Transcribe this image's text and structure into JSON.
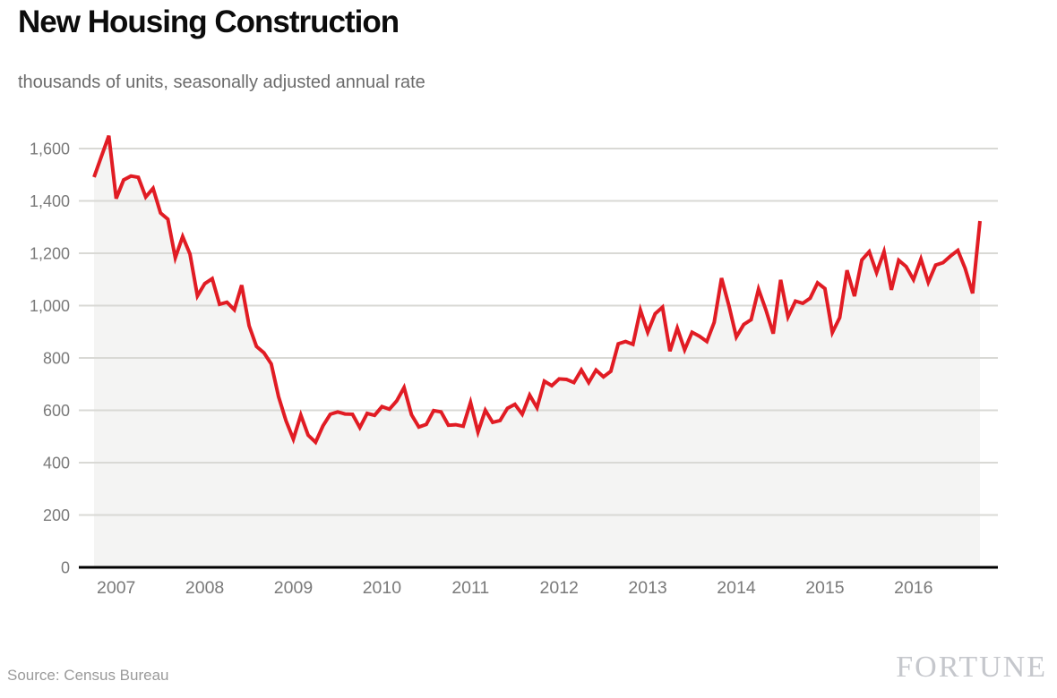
{
  "header": {
    "title": "New Housing Construction",
    "subtitle": "thousands of units, seasonally adjusted annual rate"
  },
  "footer": {
    "source": "Source: Census Bureau",
    "brand": "FORTUNE"
  },
  "chart_data": {
    "type": "line",
    "title": "New Housing Construction",
    "subtitle": "thousands of units, seasonally adjusted annual rate",
    "ylabel": "thousands of units, seasonally adjusted annual rate",
    "xlabel": "",
    "ylim": [
      0,
      1600
    ],
    "grid": "horizontal",
    "legend": "none",
    "line_color": "#e11c24",
    "area_fill_color": "#f4f4f3",
    "grid_color": "#d9d9d5",
    "axis_color": "#000000",
    "y_ticks": [
      0,
      200,
      400,
      600,
      800,
      1000,
      1200,
      1400,
      1600
    ],
    "y_tick_labels": [
      "0",
      "200",
      "400",
      "600",
      "800",
      "1,000",
      "1,200",
      "1,400",
      "1,600"
    ],
    "x_tick_labels": [
      "2007",
      "2008",
      "2009",
      "2010",
      "2011",
      "2012",
      "2013",
      "2014",
      "2015",
      "2016"
    ],
    "x_ticks_first_month_offset": 3,
    "x_ticks_interval_months": 12,
    "series": [
      {
        "name": "New housing construction",
        "frequency": "monthly",
        "start_month": "2006-10",
        "end_month": "2016-10",
        "values": [
          1491,
          1570,
          1649,
          1409,
          1480,
          1495,
          1490,
          1415,
          1448,
          1354,
          1330,
          1183,
          1264,
          1197,
          1037,
          1084,
          1103,
          1005,
          1013,
          984,
          1078,
          923,
          844,
          820,
          777,
          652,
          560,
          490,
          582,
          505,
          478,
          540,
          585,
          594,
          586,
          585,
          534,
          588,
          581,
          614,
          604,
          636,
          687,
          583,
          536,
          546,
          599,
          594,
          543,
          545,
          539,
          630,
          517,
          600,
          554,
          561,
          608,
          623,
          585,
          658,
          610,
          711,
          694,
          720,
          718,
          706,
          754,
          706,
          754,
          728,
          749,
          854,
          863,
          852,
          983,
          898,
          969,
          994,
          826,
          914,
          831,
          898,
          883,
          863,
          936,
          1105,
          999,
          880,
          928,
          946,
          1063,
          984,
          893,
          1098,
          957,
          1017,
          1009,
          1028,
          1087,
          1065,
          897,
          954,
          1135,
          1036,
          1174,
          1206,
          1126,
          1206,
          1060,
          1173,
          1149,
          1099,
          1178,
          1089,
          1155,
          1164,
          1189,
          1211,
          1142,
          1047,
          1323
        ]
      }
    ],
    "source": "Source: Census Bureau",
    "brand": "FORTUNE"
  }
}
